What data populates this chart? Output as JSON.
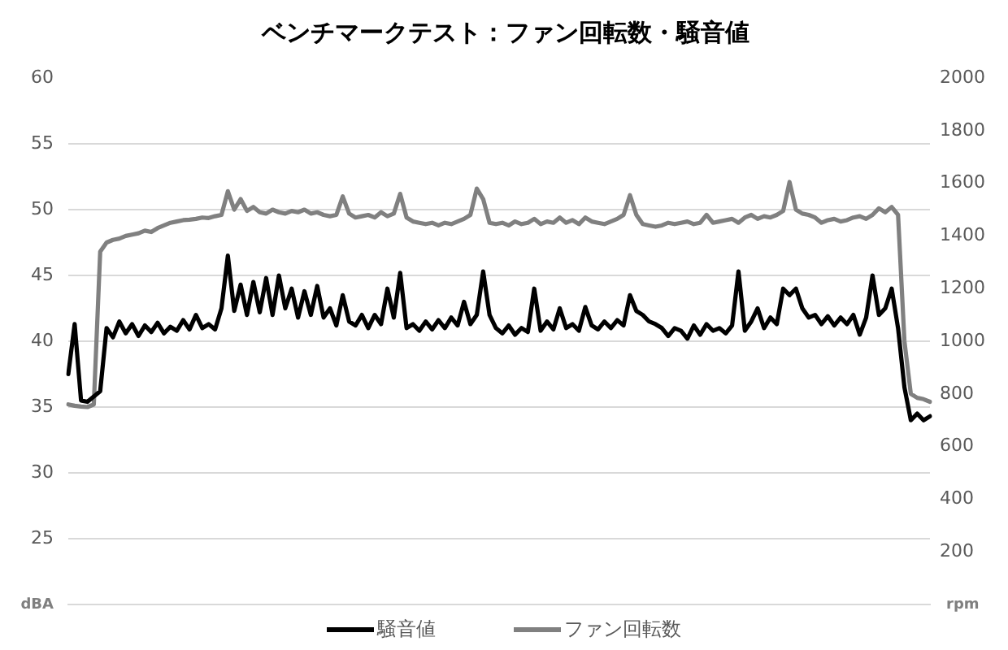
{
  "chart_data": {
    "type": "line",
    "title": "ベンチマークテスト：ファン回転数・騒音値",
    "ylabel": "dBA",
    "y2label": "rpm",
    "categories": [
      null,
      null,
      null,
      null,
      null,
      null,
      null,
      null,
      null,
      null,
      null,
      null,
      null,
      null,
      null,
      null,
      null,
      null,
      null,
      null,
      null,
      null,
      null,
      null,
      null,
      null,
      null,
      null,
      null,
      null,
      null,
      null,
      null,
      null,
      null,
      null,
      null,
      null,
      null,
      null,
      null,
      null,
      null,
      null,
      null,
      null,
      null,
      null,
      null,
      null,
      null,
      null,
      null,
      null,
      null,
      null,
      null,
      null,
      null,
      null,
      null,
      null,
      null,
      null,
      null,
      null,
      null,
      null,
      null,
      null,
      null,
      null,
      null,
      null,
      null,
      null,
      null,
      null,
      null,
      null,
      null,
      null,
      null,
      null,
      null,
      null,
      null,
      null,
      null,
      null,
      null,
      null,
      null,
      null,
      null,
      null,
      null,
      null,
      null,
      null,
      null,
      null,
      null,
      null,
      null,
      null,
      null,
      null,
      null,
      null,
      null,
      null,
      null,
      null,
      null,
      null,
      null,
      null,
      null,
      null,
      null,
      null,
      null,
      null,
      null,
      null,
      null,
      null,
      null,
      null,
      null,
      null,
      null,
      null,
      null,
      null
    ],
    "series": [
      {
        "name": "騒音値",
        "color": "#000000",
        "axis": "y",
        "values": [
          37.5,
          41.3,
          35.5,
          35.4,
          35.8,
          36.2,
          41.0,
          40.3,
          41.5,
          40.6,
          41.3,
          40.4,
          41.2,
          40.7,
          41.4,
          40.6,
          41.1,
          40.8,
          41.6,
          40.9,
          42.0,
          41.0,
          41.3,
          40.9,
          42.5,
          46.5,
          42.3,
          44.3,
          42.0,
          44.5,
          42.2,
          44.8,
          42.0,
          45.0,
          42.5,
          44.0,
          41.8,
          43.8,
          42.0,
          44.2,
          41.8,
          42.5,
          41.2,
          43.5,
          41.5,
          41.2,
          42.0,
          41.0,
          42.0,
          41.3,
          44.0,
          41.8,
          45.2,
          41.0,
          41.3,
          40.8,
          41.5,
          40.9,
          41.6,
          41.0,
          41.8,
          41.2,
          43.0,
          41.3,
          42.0,
          45.3,
          42.0,
          41.0,
          40.6,
          41.2,
          40.5,
          41.0,
          40.7,
          44.0,
          40.8,
          41.5,
          40.9,
          42.5,
          41.0,
          41.3,
          40.8,
          42.6,
          41.2,
          40.9,
          41.5,
          41.0,
          41.6,
          41.2,
          43.5,
          42.3,
          42.0,
          41.5,
          41.3,
          41.0,
          40.4,
          41.0,
          40.8,
          40.2,
          41.2,
          40.5,
          41.3,
          40.8,
          41.0,
          40.6,
          41.2,
          45.3,
          40.8,
          41.5,
          42.5,
          41.0,
          41.8,
          41.3,
          44.0,
          43.5,
          44.0,
          42.5,
          41.8,
          42.0,
          41.3,
          41.9,
          41.2,
          41.8,
          41.3,
          42.0,
          40.5,
          41.8,
          45.0,
          42.0,
          42.5,
          44.0,
          41.0,
          36.5,
          34.0,
          34.5,
          34.0,
          34.3
        ]
      },
      {
        "name": "ファン回転数",
        "color": "#808080",
        "axis": "y2",
        "values": [
          760,
          755,
          752,
          750,
          760,
          1340,
          1375,
          1385,
          1390,
          1400,
          1405,
          1410,
          1420,
          1415,
          1430,
          1440,
          1450,
          1455,
          1460,
          1462,
          1465,
          1470,
          1468,
          1475,
          1480,
          1570,
          1500,
          1540,
          1495,
          1510,
          1490,
          1485,
          1500,
          1490,
          1485,
          1495,
          1490,
          1500,
          1485,
          1490,
          1480,
          1475,
          1480,
          1550,
          1485,
          1470,
          1475,
          1480,
          1470,
          1490,
          1475,
          1485,
          1560,
          1470,
          1455,
          1450,
          1445,
          1450,
          1440,
          1450,
          1445,
          1455,
          1465,
          1480,
          1580,
          1540,
          1450,
          1445,
          1450,
          1440,
          1455,
          1445,
          1450,
          1465,
          1445,
          1455,
          1450,
          1470,
          1450,
          1460,
          1445,
          1470,
          1455,
          1450,
          1445,
          1455,
          1465,
          1480,
          1555,
          1480,
          1445,
          1440,
          1435,
          1440,
          1450,
          1445,
          1450,
          1455,
          1445,
          1450,
          1480,
          1450,
          1455,
          1460,
          1465,
          1450,
          1470,
          1480,
          1465,
          1475,
          1470,
          1480,
          1495,
          1605,
          1500,
          1485,
          1480,
          1470,
          1450,
          1460,
          1465,
          1455,
          1460,
          1470,
          1475,
          1465,
          1480,
          1505,
          1490,
          1510,
          1480,
          1000,
          800,
          785,
          780,
          770
        ]
      }
    ],
    "ylim": [
      20,
      60
    ],
    "yticks": [
      25,
      30,
      35,
      40,
      45,
      50,
      55,
      60
    ],
    "y2lim": [
      0,
      2000
    ],
    "y2ticks": [
      200,
      400,
      600,
      800,
      1000,
      1200,
      1400,
      1600,
      1800,
      2000
    ],
    "grid": "y",
    "legend": "bottom",
    "marker": "none",
    "line_style": "solid"
  }
}
